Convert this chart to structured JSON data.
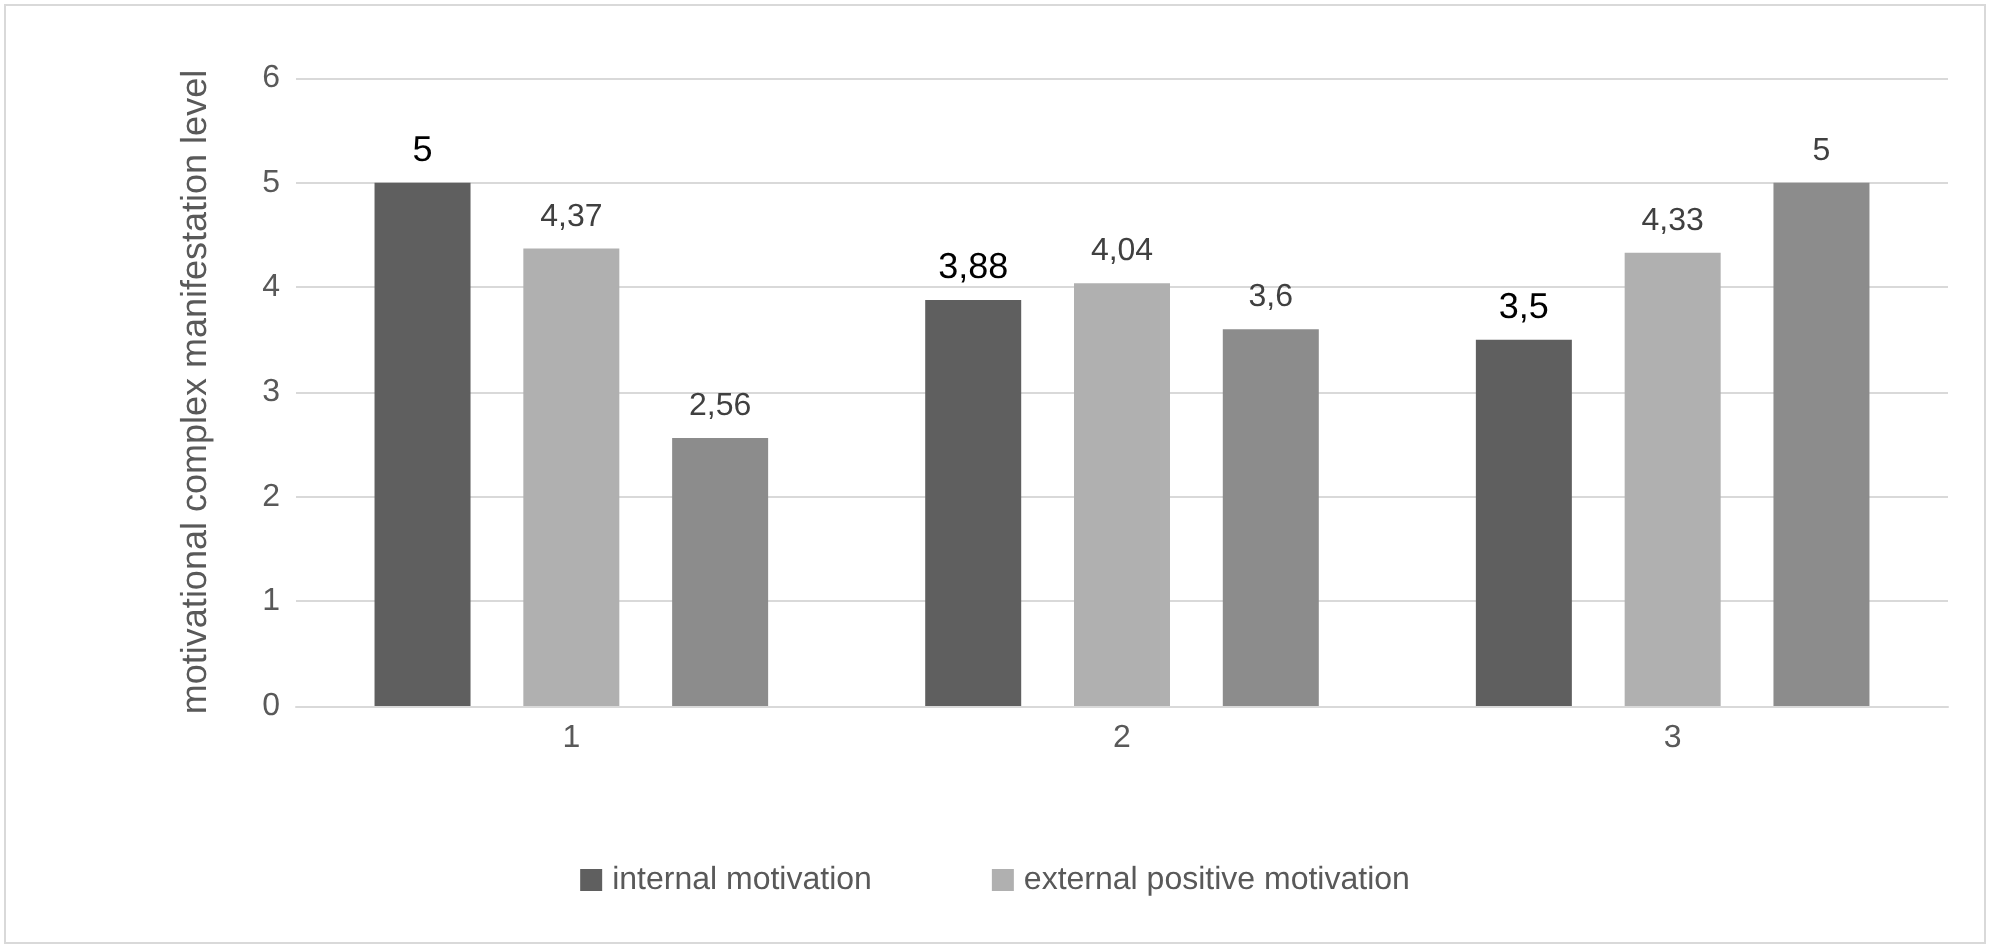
{
  "chart_data": {
    "type": "bar",
    "ylabel": "motivational complex manifestation level",
    "categories": [
      "1",
      "2",
      "3"
    ],
    "series": [
      {
        "name": "internal motivation",
        "color": "#5f5f5f",
        "values": [
          5,
          3.88,
          3.5
        ],
        "value_labels": [
          "5",
          "3,88",
          "3,5"
        ]
      },
      {
        "name": "external positive motivation",
        "color": "#b0b0b0",
        "values": [
          4.37,
          4.04,
          4.33
        ],
        "value_labels": [
          "4,37",
          "4,04",
          "4,33"
        ]
      },
      {
        "color": "#8c8c8c",
        "values": [
          2.56,
          3.6,
          5
        ],
        "value_labels": [
          "2,56",
          "3,6",
          "5"
        ]
      }
    ],
    "ylim": [
      0,
      6
    ],
    "yticks": [
      0,
      1,
      2,
      3,
      4,
      5,
      6
    ],
    "grid": "y",
    "legend": "bottom"
  }
}
